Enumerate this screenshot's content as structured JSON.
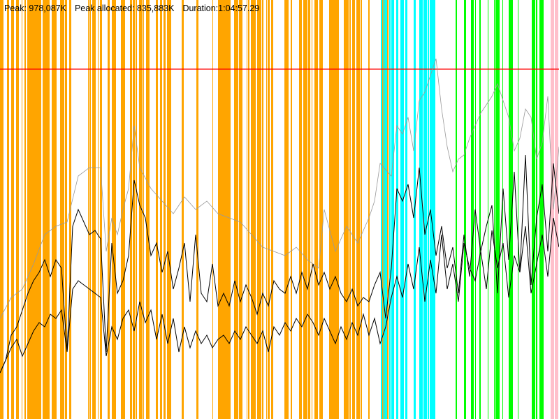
{
  "stats": {
    "peak": "Peak: 978,087K",
    "peak_allocated": "Peak allocated: 835,883K",
    "duration": "Duration:1:04:57.29"
  },
  "chart_data": {
    "type": "line",
    "title": "",
    "xlabel": "",
    "ylabel": "",
    "x_range": [
      0,
      1
    ],
    "y_range": [
      0,
      1
    ],
    "peak_line": {
      "value": 0.835,
      "color": "#ff0000"
    },
    "phase_colors": {
      "orange": "#ffa500",
      "cyan": "#00ffff",
      "green": "#00ff00",
      "pink": "#ffc0cb"
    },
    "phase_bands": [
      {
        "color": "orange",
        "from": 0.0,
        "to": 0.695,
        "density": 0.62
      },
      {
        "color": "cyan",
        "from": 0.675,
        "to": 0.8,
        "density": 0.55
      },
      {
        "color": "green",
        "from": 0.815,
        "to": 0.975,
        "density": 0.45
      },
      {
        "color": "pink",
        "from": 0.985,
        "to": 1.0,
        "density": 0.6
      }
    ],
    "series": [
      {
        "color": "#999999",
        "points": [
          [
            0.0,
            0.24
          ],
          [
            0.02,
            0.29
          ],
          [
            0.04,
            0.31
          ],
          [
            0.06,
            0.37
          ],
          [
            0.08,
            0.44
          ],
          [
            0.1,
            0.46
          ],
          [
            0.12,
            0.47
          ],
          [
            0.14,
            0.58
          ],
          [
            0.16,
            0.6
          ],
          [
            0.18,
            0.6
          ],
          [
            0.19,
            0.4
          ],
          [
            0.2,
            0.48
          ],
          [
            0.21,
            0.44
          ],
          [
            0.22,
            0.5
          ],
          [
            0.23,
            0.55
          ],
          [
            0.24,
            0.7
          ],
          [
            0.25,
            0.6
          ],
          [
            0.27,
            0.55
          ],
          [
            0.29,
            0.52
          ],
          [
            0.31,
            0.49
          ],
          [
            0.33,
            0.53
          ],
          [
            0.35,
            0.5
          ],
          [
            0.37,
            0.52
          ],
          [
            0.39,
            0.49
          ],
          [
            0.41,
            0.48
          ],
          [
            0.43,
            0.47
          ],
          [
            0.45,
            0.44
          ],
          [
            0.47,
            0.41
          ],
          [
            0.49,
            0.4
          ],
          [
            0.51,
            0.39
          ],
          [
            0.53,
            0.41
          ],
          [
            0.55,
            0.38
          ],
          [
            0.57,
            0.36
          ],
          [
            0.58,
            0.5
          ],
          [
            0.6,
            0.4
          ],
          [
            0.62,
            0.46
          ],
          [
            0.64,
            0.42
          ],
          [
            0.66,
            0.48
          ],
          [
            0.67,
            0.52
          ],
          [
            0.68,
            0.61
          ],
          [
            0.7,
            0.58
          ],
          [
            0.71,
            0.7
          ],
          [
            0.72,
            0.68
          ],
          [
            0.73,
            0.72
          ],
          [
            0.74,
            0.64
          ],
          [
            0.75,
            0.76
          ],
          [
            0.76,
            0.78
          ],
          [
            0.77,
            0.82
          ],
          [
            0.78,
            0.86
          ],
          [
            0.79,
            0.74
          ],
          [
            0.8,
            0.65
          ],
          [
            0.81,
            0.59
          ],
          [
            0.82,
            0.62
          ],
          [
            0.83,
            0.63
          ],
          [
            0.84,
            0.67
          ],
          [
            0.85,
            0.7
          ],
          [
            0.86,
            0.73
          ],
          [
            0.87,
            0.75
          ],
          [
            0.88,
            0.77
          ],
          [
            0.89,
            0.8
          ],
          [
            0.9,
            0.76
          ],
          [
            0.91,
            0.72
          ],
          [
            0.92,
            0.64
          ],
          [
            0.93,
            0.67
          ],
          [
            0.94,
            0.74
          ],
          [
            0.95,
            0.72
          ],
          [
            0.96,
            0.62
          ],
          [
            0.97,
            0.66
          ],
          [
            0.98,
            0.77
          ],
          [
            0.99,
            0.5
          ],
          [
            1.0,
            0.65
          ]
        ]
      },
      {
        "color": "#000000",
        "points": [
          [
            0.0,
            0.11
          ],
          [
            0.01,
            0.14
          ],
          [
            0.02,
            0.2
          ],
          [
            0.03,
            0.22
          ],
          [
            0.04,
            0.26
          ],
          [
            0.05,
            0.3
          ],
          [
            0.06,
            0.33
          ],
          [
            0.07,
            0.35
          ],
          [
            0.08,
            0.38
          ],
          [
            0.09,
            0.34
          ],
          [
            0.1,
            0.38
          ],
          [
            0.11,
            0.36
          ],
          [
            0.12,
            0.16
          ],
          [
            0.13,
            0.46
          ],
          [
            0.14,
            0.5
          ],
          [
            0.15,
            0.47
          ],
          [
            0.16,
            0.44
          ],
          [
            0.17,
            0.45
          ],
          [
            0.18,
            0.43
          ],
          [
            0.19,
            0.16
          ],
          [
            0.2,
            0.42
          ],
          [
            0.21,
            0.3
          ],
          [
            0.22,
            0.33
          ],
          [
            0.23,
            0.39
          ],
          [
            0.24,
            0.57
          ],
          [
            0.25,
            0.51
          ],
          [
            0.26,
            0.48
          ],
          [
            0.27,
            0.39
          ],
          [
            0.28,
            0.42
          ],
          [
            0.29,
            0.35
          ],
          [
            0.3,
            0.4
          ],
          [
            0.31,
            0.31
          ],
          [
            0.32,
            0.36
          ],
          [
            0.33,
            0.42
          ],
          [
            0.34,
            0.28
          ],
          [
            0.35,
            0.44
          ],
          [
            0.36,
            0.3
          ],
          [
            0.37,
            0.28
          ],
          [
            0.38,
            0.37
          ],
          [
            0.39,
            0.27
          ],
          [
            0.4,
            0.3
          ],
          [
            0.41,
            0.27
          ],
          [
            0.42,
            0.33
          ],
          [
            0.43,
            0.28
          ],
          [
            0.44,
            0.32
          ],
          [
            0.45,
            0.29
          ],
          [
            0.46,
            0.25
          ],
          [
            0.47,
            0.3
          ],
          [
            0.48,
            0.27
          ],
          [
            0.49,
            0.33
          ],
          [
            0.5,
            0.31
          ],
          [
            0.51,
            0.3
          ],
          [
            0.52,
            0.34
          ],
          [
            0.53,
            0.3
          ],
          [
            0.54,
            0.35
          ],
          [
            0.55,
            0.31
          ],
          [
            0.56,
            0.37
          ],
          [
            0.57,
            0.32
          ],
          [
            0.58,
            0.35
          ],
          [
            0.59,
            0.31
          ],
          [
            0.6,
            0.34
          ],
          [
            0.61,
            0.3
          ],
          [
            0.62,
            0.28
          ],
          [
            0.63,
            0.31
          ],
          [
            0.64,
            0.27
          ],
          [
            0.65,
            0.29
          ],
          [
            0.66,
            0.28
          ],
          [
            0.67,
            0.32
          ],
          [
            0.68,
            0.35
          ],
          [
            0.69,
            0.24
          ],
          [
            0.7,
            0.36
          ],
          [
            0.71,
            0.55
          ],
          [
            0.72,
            0.52
          ],
          [
            0.73,
            0.56
          ],
          [
            0.74,
            0.48
          ],
          [
            0.75,
            0.6
          ],
          [
            0.76,
            0.44
          ],
          [
            0.77,
            0.5
          ],
          [
            0.78,
            0.39
          ],
          [
            0.79,
            0.46
          ],
          [
            0.8,
            0.36
          ],
          [
            0.81,
            0.41
          ],
          [
            0.82,
            0.3
          ],
          [
            0.83,
            0.44
          ],
          [
            0.84,
            0.34
          ],
          [
            0.85,
            0.5
          ],
          [
            0.86,
            0.4
          ],
          [
            0.87,
            0.46
          ],
          [
            0.88,
            0.51
          ],
          [
            0.89,
            0.3
          ],
          [
            0.9,
            0.55
          ],
          [
            0.91,
            0.38
          ],
          [
            0.92,
            0.59
          ],
          [
            0.93,
            0.35
          ],
          [
            0.94,
            0.63
          ],
          [
            0.95,
            0.32
          ],
          [
            0.96,
            0.48
          ],
          [
            0.97,
            0.56
          ],
          [
            0.98,
            0.4
          ],
          [
            0.99,
            0.61
          ],
          [
            1.0,
            0.49
          ]
        ]
      },
      {
        "color": "#000000",
        "points": [
          [
            0.0,
            0.11
          ],
          [
            0.01,
            0.14
          ],
          [
            0.02,
            0.17
          ],
          [
            0.03,
            0.19
          ],
          [
            0.04,
            0.15
          ],
          [
            0.05,
            0.18
          ],
          [
            0.06,
            0.21
          ],
          [
            0.07,
            0.23
          ],
          [
            0.08,
            0.22
          ],
          [
            0.09,
            0.25
          ],
          [
            0.1,
            0.24
          ],
          [
            0.11,
            0.26
          ],
          [
            0.12,
            0.16
          ],
          [
            0.13,
            0.31
          ],
          [
            0.14,
            0.33
          ],
          [
            0.15,
            0.32
          ],
          [
            0.16,
            0.31
          ],
          [
            0.17,
            0.3
          ],
          [
            0.18,
            0.29
          ],
          [
            0.19,
            0.15
          ],
          [
            0.2,
            0.22
          ],
          [
            0.21,
            0.19
          ],
          [
            0.22,
            0.24
          ],
          [
            0.23,
            0.26
          ],
          [
            0.24,
            0.21
          ],
          [
            0.25,
            0.28
          ],
          [
            0.26,
            0.23
          ],
          [
            0.27,
            0.26
          ],
          [
            0.28,
            0.19
          ],
          [
            0.29,
            0.25
          ],
          [
            0.3,
            0.18
          ],
          [
            0.31,
            0.24
          ],
          [
            0.32,
            0.16
          ],
          [
            0.33,
            0.22
          ],
          [
            0.34,
            0.17
          ],
          [
            0.35,
            0.21
          ],
          [
            0.36,
            0.18
          ],
          [
            0.37,
            0.2
          ],
          [
            0.38,
            0.17
          ],
          [
            0.39,
            0.19
          ],
          [
            0.4,
            0.2
          ],
          [
            0.41,
            0.18
          ],
          [
            0.42,
            0.21
          ],
          [
            0.43,
            0.19
          ],
          [
            0.44,
            0.22
          ],
          [
            0.45,
            0.2
          ],
          [
            0.46,
            0.18
          ],
          [
            0.47,
            0.21
          ],
          [
            0.48,
            0.16
          ],
          [
            0.49,
            0.22
          ],
          [
            0.5,
            0.2
          ],
          [
            0.51,
            0.23
          ],
          [
            0.52,
            0.21
          ],
          [
            0.53,
            0.24
          ],
          [
            0.54,
            0.22
          ],
          [
            0.55,
            0.25
          ],
          [
            0.56,
            0.23
          ],
          [
            0.57,
            0.2
          ],
          [
            0.58,
            0.24
          ],
          [
            0.59,
            0.21
          ],
          [
            0.6,
            0.18
          ],
          [
            0.61,
            0.22
          ],
          [
            0.62,
            0.19
          ],
          [
            0.63,
            0.23
          ],
          [
            0.64,
            0.2
          ],
          [
            0.65,
            0.25
          ],
          [
            0.66,
            0.2
          ],
          [
            0.67,
            0.24
          ],
          [
            0.68,
            0.18
          ],
          [
            0.69,
            0.22
          ],
          [
            0.7,
            0.29
          ],
          [
            0.71,
            0.34
          ],
          [
            0.72,
            0.29
          ],
          [
            0.73,
            0.37
          ],
          [
            0.74,
            0.31
          ],
          [
            0.75,
            0.41
          ],
          [
            0.76,
            0.28
          ],
          [
            0.77,
            0.38
          ],
          [
            0.78,
            0.3
          ],
          [
            0.79,
            0.44
          ],
          [
            0.8,
            0.31
          ],
          [
            0.81,
            0.37
          ],
          [
            0.82,
            0.28
          ],
          [
            0.83,
            0.42
          ],
          [
            0.84,
            0.36
          ],
          [
            0.85,
            0.33
          ],
          [
            0.86,
            0.4
          ],
          [
            0.87,
            0.31
          ],
          [
            0.88,
            0.45
          ],
          [
            0.89,
            0.36
          ],
          [
            0.9,
            0.42
          ],
          [
            0.91,
            0.29
          ],
          [
            0.92,
            0.39
          ],
          [
            0.93,
            0.35
          ],
          [
            0.94,
            0.46
          ],
          [
            0.95,
            0.3
          ],
          [
            0.96,
            0.37
          ],
          [
            0.97,
            0.44
          ],
          [
            0.98,
            0.34
          ],
          [
            0.99,
            0.48
          ],
          [
            1.0,
            0.41
          ]
        ]
      }
    ]
  }
}
